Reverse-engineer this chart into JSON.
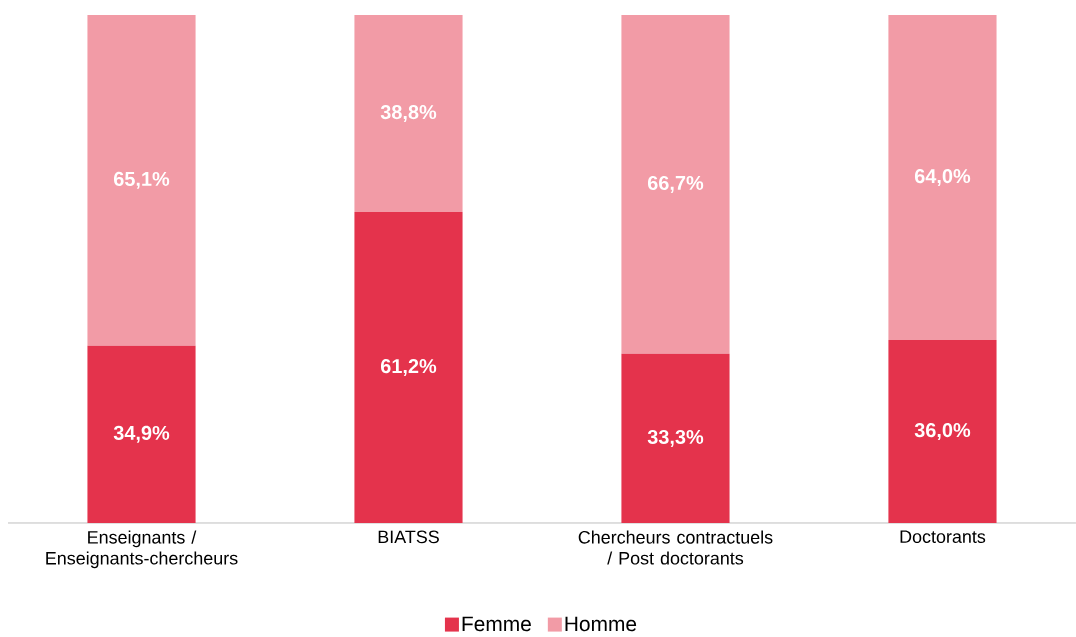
{
  "chart_data": {
    "type": "bar",
    "stacked": true,
    "categories": [
      "Enseignants / Enseignants-chercheurs",
      "BIATSS",
      "Chercheurs contractuels / Post doctorants",
      "Doctorants"
    ],
    "series": [
      {
        "name": "Femme",
        "color": "#e4334c",
        "values": [
          34.9,
          61.2,
          33.3,
          36.0
        ],
        "value_labels": [
          "34,9%",
          "61,2%",
          "33,3%",
          "36,0%"
        ]
      },
      {
        "name": "Homme",
        "color": "#f29ba6",
        "values": [
          65.1,
          38.8,
          66.7,
          64.0
        ],
        "value_labels": [
          "65,1%",
          "38,8%",
          "66,7%",
          "64,0%"
        ]
      }
    ],
    "ylim": [
      0,
      100
    ],
    "tick_labels": "x",
    "legend": "bottom"
  }
}
